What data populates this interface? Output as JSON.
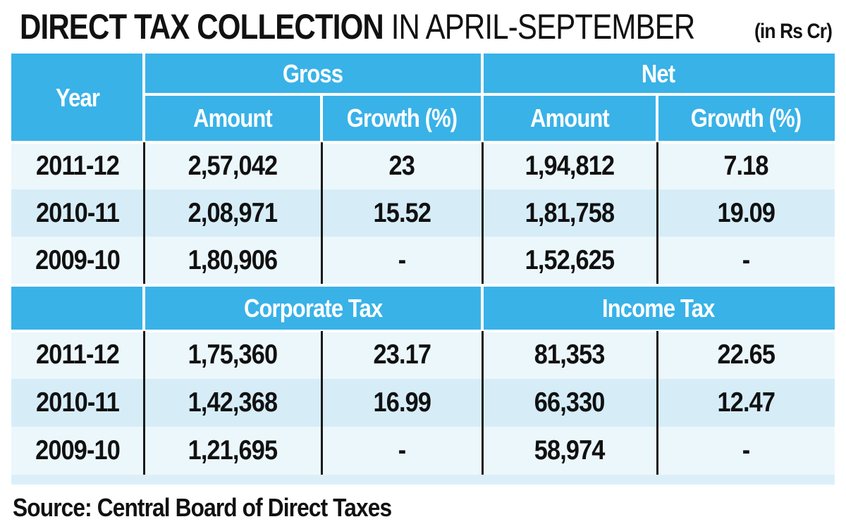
{
  "title_bold": "DIRECT TAX COLLECTION",
  "title_rest": "IN APRIL-SEPTEMBER",
  "unit_note": "(in Rs Cr)",
  "headers": {
    "year": "Year",
    "gross": "Gross",
    "net": "Net",
    "amount": "Amount",
    "growth": "Growth (%)",
    "corporate": "Corporate Tax",
    "income": "Income Tax"
  },
  "source": "Source: Central Board of Direct Taxes",
  "chart_data": {
    "type": "table",
    "title": "DIRECT TAX COLLECTION IN APRIL-SEPTEMBER",
    "unit": "(in Rs Cr)",
    "sections": [
      {
        "groups": [
          "Gross",
          "Net"
        ],
        "columns": [
          "Year",
          "Amount",
          "Growth (%)",
          "Amount",
          "Growth (%)"
        ],
        "rows": [
          [
            "2011-12",
            "2,57,042",
            "23",
            "1,94,812",
            "7.18"
          ],
          [
            "2010-11",
            "2,08,971",
            "15.52",
            "1,81,758",
            "19.09"
          ],
          [
            "2009-10",
            "1,80,906",
            "-",
            "1,52,625",
            "-"
          ]
        ]
      },
      {
        "groups": [
          "Corporate Tax",
          "Income Tax"
        ],
        "columns": [
          "Year",
          "Amount",
          "Growth (%)",
          "Amount",
          "Growth (%)"
        ],
        "rows": [
          [
            "2011-12",
            "1,75,360",
            "23.17",
            "81,353",
            "22.65"
          ],
          [
            "2010-11",
            "1,42,368",
            "16.99",
            "66,330",
            "12.47"
          ],
          [
            "2009-10",
            "1,21,695",
            "-",
            "58,974",
            "-"
          ]
        ]
      }
    ],
    "source": "Source: Central Board of Direct Taxes"
  }
}
